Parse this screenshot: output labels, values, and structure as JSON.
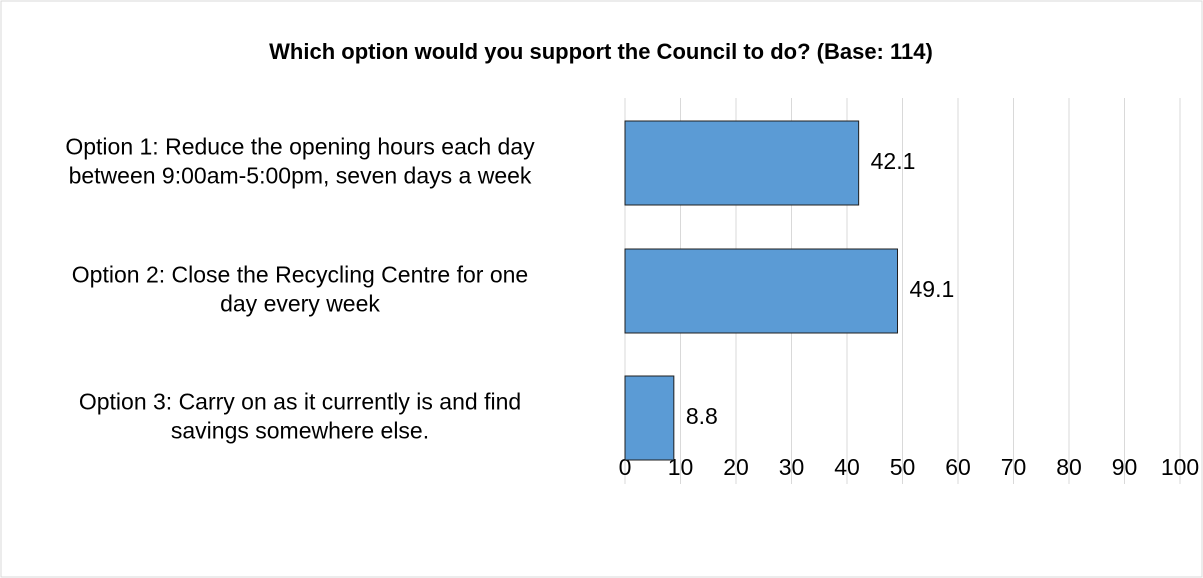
{
  "chart_data": {
    "type": "bar",
    "orientation": "horizontal",
    "title": "Which option would you support the Council to do? (Base: 114)",
    "categories": [
      [
        "Option 1: Reduce the opening hours each day",
        "between 9:00am-5:00pm, seven days a week"
      ],
      [
        "Option 2: Close the Recycling Centre for one",
        "day every week"
      ],
      [
        "Option 3: Carry on as it currently is and find",
        "savings somewhere else."
      ]
    ],
    "values": [
      42.1,
      49.1,
      8.8
    ],
    "color": "#5b9bd5",
    "xlim": [
      0,
      100
    ],
    "xticks": [
      0,
      10,
      20,
      30,
      40,
      50,
      60,
      70,
      80,
      90,
      100
    ],
    "grid": true
  }
}
